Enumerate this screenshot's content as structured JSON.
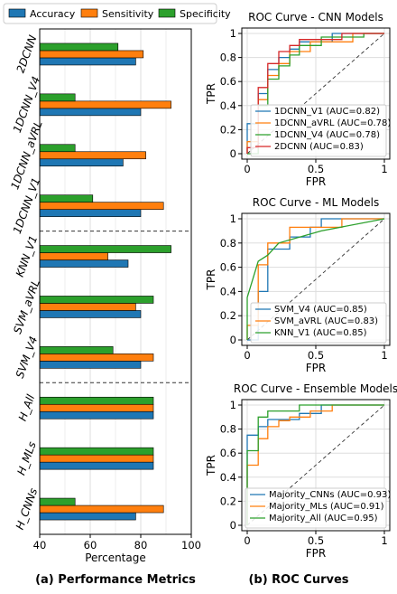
{
  "captions": {
    "left": "(a) Performance Metrics",
    "right": "(b) ROC Curves"
  },
  "colors": {
    "blue": "#1f77b4",
    "orange": "#ff7f0e",
    "green": "#2ca02c",
    "red": "#d62728",
    "grid": "#dddddd"
  },
  "chart_data": [
    {
      "type": "bar",
      "orientation": "horizontal",
      "xlabel": "Percentage",
      "xlim": [
        40,
        100
      ],
      "xticks": [
        40,
        60,
        80,
        100
      ],
      "grid": "vertical",
      "legend_position": "top",
      "categories": [
        "2DCNN",
        "1DCNN_V4",
        "1DCNN_aVRL",
        "1DCNN_V1",
        "KNN_V1",
        "SVM_aVRL",
        "SVM_V4",
        "H_All",
        "H_MLs",
        "H_CNNs"
      ],
      "group_separators_after": [
        "1DCNN_V1",
        "SVM_V4"
      ],
      "series": [
        {
          "name": "Accuracy",
          "color": "#1f77b4",
          "values": [
            78,
            80,
            73,
            80,
            75,
            80,
            80,
            85,
            85,
            78
          ]
        },
        {
          "name": "Sensitivity",
          "color": "#ff7f0e",
          "values": [
            81,
            92,
            82,
            89,
            67,
            78,
            85,
            85,
            85,
            89
          ]
        },
        {
          "name": "Specificity",
          "color": "#2ca02c",
          "values": [
            71,
            54,
            54,
            61,
            92,
            85,
            69,
            85,
            85,
            54
          ]
        }
      ]
    },
    {
      "type": "line",
      "title": "ROC Curve - CNN Models",
      "xlabel": "FPR",
      "ylabel": "TPR",
      "xlim": [
        0,
        1
      ],
      "ylim": [
        0,
        1
      ],
      "xticks": [
        0.0,
        0.5,
        1.0
      ],
      "yticks": [
        0.0,
        0.2,
        0.4,
        0.6,
        0.8,
        1.0
      ],
      "grid": true,
      "legend_position": "lower-right",
      "series": [
        {
          "name": "1DCNN_V1 (AUC=0.82)",
          "color": "#1f77b4",
          "points": [
            [
              0,
              0
            ],
            [
              0,
              0.25
            ],
            [
              0.08,
              0.25
            ],
            [
              0.08,
              0.5
            ],
            [
              0.15,
              0.5
            ],
            [
              0.15,
              0.7
            ],
            [
              0.23,
              0.7
            ],
            [
              0.23,
              0.8
            ],
            [
              0.31,
              0.8
            ],
            [
              0.31,
              0.87
            ],
            [
              0.38,
              0.87
            ],
            [
              0.38,
              0.93
            ],
            [
              0.62,
              0.93
            ],
            [
              0.62,
              1.0
            ],
            [
              1,
              1
            ]
          ]
        },
        {
          "name": "1DCNN_aVRL (AUC=0.78)",
          "color": "#ff7f0e",
          "points": [
            [
              0,
              0
            ],
            [
              0,
              0.1
            ],
            [
              0.08,
              0.1
            ],
            [
              0.08,
              0.45
            ],
            [
              0.15,
              0.45
            ],
            [
              0.15,
              0.65
            ],
            [
              0.23,
              0.65
            ],
            [
              0.23,
              0.75
            ],
            [
              0.31,
              0.75
            ],
            [
              0.31,
              0.85
            ],
            [
              0.46,
              0.85
            ],
            [
              0.46,
              0.93
            ],
            [
              0.77,
              0.93
            ],
            [
              0.77,
              1.0
            ],
            [
              1,
              1
            ]
          ]
        },
        {
          "name": "1DCNN_V4 (AUC=0.78)",
          "color": "#2ca02c",
          "points": [
            [
              0,
              0
            ],
            [
              0.08,
              0
            ],
            [
              0.08,
              0.4
            ],
            [
              0.15,
              0.4
            ],
            [
              0.15,
              0.62
            ],
            [
              0.23,
              0.62
            ],
            [
              0.23,
              0.73
            ],
            [
              0.31,
              0.73
            ],
            [
              0.31,
              0.82
            ],
            [
              0.38,
              0.82
            ],
            [
              0.38,
              0.9
            ],
            [
              0.54,
              0.9
            ],
            [
              0.54,
              0.97
            ],
            [
              0.85,
              0.97
            ],
            [
              0.85,
              1.0
            ],
            [
              1,
              1
            ]
          ]
        },
        {
          "name": "2DCNN (AUC=0.83)",
          "color": "#d62728",
          "points": [
            [
              0,
              0
            ],
            [
              0,
              0.05
            ],
            [
              0.08,
              0.05
            ],
            [
              0.08,
              0.55
            ],
            [
              0.15,
              0.55
            ],
            [
              0.15,
              0.75
            ],
            [
              0.23,
              0.75
            ],
            [
              0.23,
              0.85
            ],
            [
              0.31,
              0.85
            ],
            [
              0.31,
              0.9
            ],
            [
              0.38,
              0.9
            ],
            [
              0.38,
              0.95
            ],
            [
              0.69,
              0.95
            ],
            [
              0.69,
              1.0
            ],
            [
              1,
              1
            ]
          ]
        }
      ]
    },
    {
      "type": "line",
      "title": "ROC Curve - ML Models",
      "xlabel": "FPR",
      "ylabel": "TPR",
      "xlim": [
        0,
        1
      ],
      "ylim": [
        0,
        1
      ],
      "xticks": [
        0.0,
        0.5,
        1.0
      ],
      "yticks": [
        0.0,
        0.2,
        0.4,
        0.6,
        0.8,
        1.0
      ],
      "grid": true,
      "legend_position": "lower-right",
      "series": [
        {
          "name": "SVM_V4 (AUC=0.85)",
          "color": "#1f77b4",
          "points": [
            [
              0,
              0
            ],
            [
              0.08,
              0
            ],
            [
              0.08,
              0.4
            ],
            [
              0.15,
              0.4
            ],
            [
              0.15,
              0.75
            ],
            [
              0.31,
              0.75
            ],
            [
              0.31,
              0.85
            ],
            [
              0.46,
              0.85
            ],
            [
              0.46,
              0.93
            ],
            [
              0.54,
              0.93
            ],
            [
              0.54,
              1.0
            ],
            [
              1,
              1
            ]
          ]
        },
        {
          "name": "SVM_aVRL (AUC=0.83)",
          "color": "#ff7f0e",
          "points": [
            [
              0,
              0
            ],
            [
              0,
              0.12
            ],
            [
              0.08,
              0.12
            ],
            [
              0.08,
              0.62
            ],
            [
              0.15,
              0.62
            ],
            [
              0.15,
              0.8
            ],
            [
              0.31,
              0.8
            ],
            [
              0.31,
              0.93
            ],
            [
              0.69,
              0.93
            ],
            [
              0.69,
              1.0
            ],
            [
              1,
              1
            ]
          ]
        },
        {
          "name": "KNN_V1 (AUC=0.85)",
          "color": "#2ca02c",
          "points": [
            [
              0,
              0
            ],
            [
              0,
              0.35
            ],
            [
              0.08,
              0.65
            ],
            [
              0.15,
              0.7
            ],
            [
              0.23,
              0.8
            ],
            [
              0.54,
              0.9
            ],
            [
              1,
              1
            ]
          ]
        }
      ]
    },
    {
      "type": "line",
      "title": "ROC Curve - Ensemble Models",
      "xlabel": "FPR",
      "ylabel": "TPR",
      "xlim": [
        0,
        1
      ],
      "ylim": [
        0,
        1
      ],
      "xticks": [
        0.0,
        0.5,
        1.0
      ],
      "yticks": [
        0.0,
        0.2,
        0.4,
        0.6,
        0.8,
        1.0
      ],
      "grid": true,
      "legend_position": "lower-right",
      "series": [
        {
          "name": "Majority_CNNs (AUC=0.93)",
          "color": "#1f77b4",
          "points": [
            [
              0,
              0
            ],
            [
              0,
              0.75
            ],
            [
              0.08,
              0.75
            ],
            [
              0.08,
              0.82
            ],
            [
              0.15,
              0.82
            ],
            [
              0.15,
              0.88
            ],
            [
              0.38,
              0.88
            ],
            [
              0.38,
              0.93
            ],
            [
              0.54,
              0.93
            ],
            [
              0.54,
              1.0
            ],
            [
              1,
              1
            ]
          ]
        },
        {
          "name": "Majority_MLs (AUC=0.91)",
          "color": "#ff7f0e",
          "points": [
            [
              0,
              0
            ],
            [
              0,
              0.5
            ],
            [
              0.08,
              0.5
            ],
            [
              0.08,
              0.72
            ],
            [
              0.15,
              0.72
            ],
            [
              0.15,
              0.82
            ],
            [
              0.23,
              0.82
            ],
            [
              0.23,
              0.87
            ],
            [
              0.31,
              0.87
            ],
            [
              0.31,
              0.9
            ],
            [
              0.46,
              0.9
            ],
            [
              0.46,
              0.95
            ],
            [
              0.62,
              0.95
            ],
            [
              0.62,
              1.0
            ],
            [
              1,
              1
            ]
          ]
        },
        {
          "name": "Majority_All (AUC=0.95)",
          "color": "#2ca02c",
          "points": [
            [
              0,
              0
            ],
            [
              0,
              0.62
            ],
            [
              0.08,
              0.62
            ],
            [
              0.08,
              0.9
            ],
            [
              0.15,
              0.9
            ],
            [
              0.15,
              0.95
            ],
            [
              0.38,
              0.95
            ],
            [
              0.38,
              1.0
            ],
            [
              1,
              1
            ]
          ]
        }
      ]
    }
  ]
}
